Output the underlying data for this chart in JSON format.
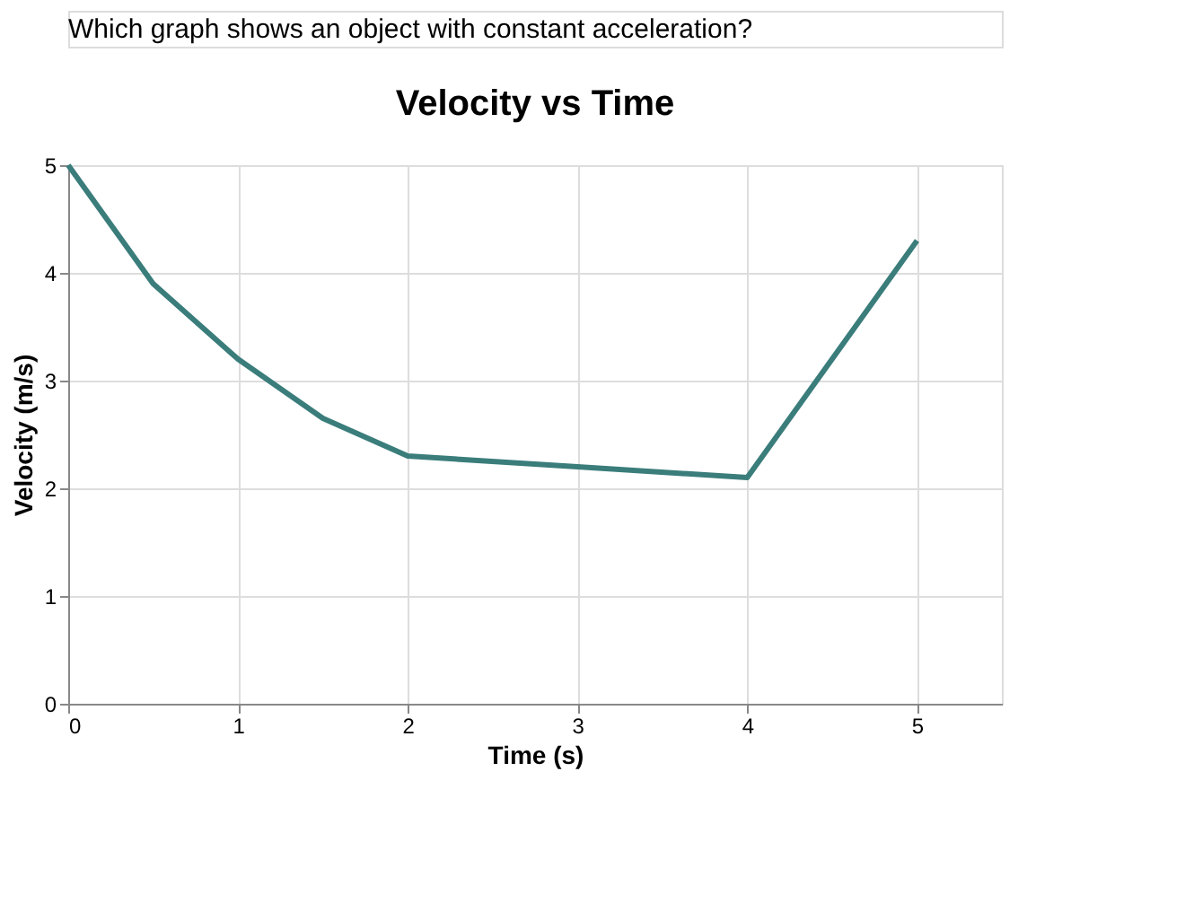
{
  "chart_data": {
    "type": "line",
    "title": "Velocity vs Time",
    "annotations": [
      "Which graph shows an object with constant acceleration?"
    ],
    "xlabel": "Time (s)",
    "ylabel": "Velocity (m/s)",
    "x": [
      0,
      0.5,
      1,
      1.5,
      2,
      3,
      4,
      5
    ],
    "series": [
      {
        "color": "#3a7d7b",
        "values": [
          5,
          3.9,
          3.2,
          2.65,
          2.3,
          2.2,
          2.1,
          4.3
        ]
      }
    ],
    "xlim": [
      0,
      5.5
    ],
    "ylim": [
      0,
      5
    ],
    "xticks": [
      0,
      1,
      2,
      3,
      4,
      5
    ],
    "yticks": [
      0,
      1,
      2,
      3,
      4,
      5
    ],
    "grid": true,
    "marker": "none",
    "line_style": "solid"
  }
}
